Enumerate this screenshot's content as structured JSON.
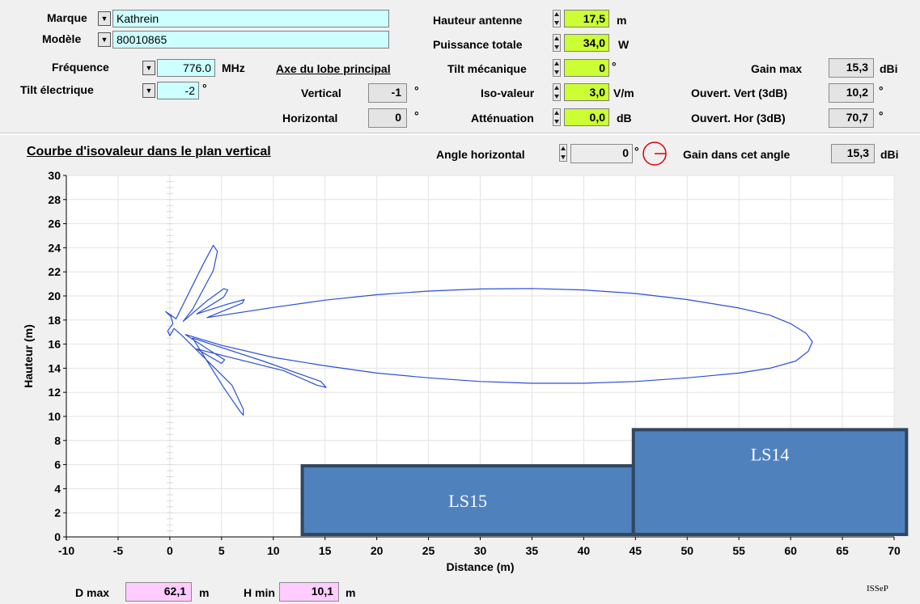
{
  "params": {
    "marque_label": "Marque",
    "marque_value": "Kathrein",
    "modele_label": "Modèle",
    "modele_value": "80010865",
    "frequence_label": "Fréquence",
    "frequence_value": "776.0",
    "frequence_unit": "MHz",
    "tilt_elec_label": "Tilt électrique",
    "tilt_elec_value": "-2",
    "tilt_elec_unit": "°",
    "axe_label": "Axe du lobe principal",
    "vertical_label": "Vertical",
    "vertical_value": "-1",
    "vertical_unit": "°",
    "horizontal_label": "Horizontal",
    "horizontal_value": "0",
    "horizontal_unit": "°",
    "hauteur_label": "Hauteur antenne",
    "hauteur_value": "17,5",
    "hauteur_unit": "m",
    "puissance_label": "Puissance totale",
    "puissance_value": "34,0",
    "puissance_unit": "W",
    "tilt_meca_label": "Tilt mécanique",
    "tilt_meca_value": "0",
    "tilt_meca_unit": "°",
    "iso_label": "Iso-valeur",
    "iso_value": "3,0",
    "iso_unit": "V/m",
    "att_label": "Atténuation",
    "att_value": "0,0",
    "att_unit": "dB",
    "gain_max_label": "Gain max",
    "gain_max_value": "15,3",
    "gain_max_unit": "dBi",
    "ouv_vert_label": "Ouvert. Vert (3dB)",
    "ouv_vert_value": "10,2",
    "ouv_vert_unit": "°",
    "ouv_hor_label": "Ouvert. Hor (3dB)",
    "ouv_hor_value": "70,7",
    "ouv_hor_unit": "°"
  },
  "plot_header": {
    "title": "Courbe d'isovaleur dans le plan vertical",
    "angle_label": "Angle horizontal",
    "angle_value": "0",
    "angle_unit": "°",
    "gain_angle_label": "Gain dans cet angle",
    "gain_angle_value": "15,3",
    "gain_angle_unit": "dBi"
  },
  "footer": {
    "dmax_label": "D max",
    "dmax_value": "62,1",
    "dmax_unit": "m",
    "hmin_label": "H min",
    "hmin_value": "10,1",
    "hmin_unit": "m",
    "brand": "ISSeP"
  },
  "colors": {
    "curve": "#2a4fd6",
    "building_fill": "#4f81bd",
    "building_stroke": "#2f4760"
  },
  "chart_data": {
    "type": "line",
    "xlabel": "Distance (m)",
    "ylabel": "Hauteur (m)",
    "xlim": [
      -10,
      70
    ],
    "ylim": [
      0,
      30
    ],
    "xticks": [
      -10,
      -5,
      0,
      5,
      10,
      15,
      20,
      25,
      30,
      35,
      40,
      45,
      50,
      55,
      60,
      65,
      70
    ],
    "yticks": [
      0,
      2,
      4,
      6,
      8,
      10,
      12,
      14,
      16,
      18,
      20,
      22,
      24,
      26,
      28,
      30
    ],
    "grid": true,
    "series": [
      {
        "points": [
          [
            0.4,
            17.3
          ],
          [
            0.0,
            16.7
          ],
          [
            -0.2,
            17.1
          ],
          [
            0.3,
            17.7
          ],
          [
            0.1,
            18.3
          ],
          [
            -0.4,
            18.7
          ],
          [
            0.6,
            18.1
          ],
          [
            3.2,
            22.6
          ],
          [
            4.2,
            24.2
          ],
          [
            4.6,
            23.7
          ],
          [
            4.2,
            22.1
          ],
          [
            2.2,
            18.9
          ],
          [
            1.3,
            17.9
          ],
          [
            3.6,
            19.6
          ],
          [
            5.2,
            20.6
          ],
          [
            5.6,
            20.5
          ],
          [
            5.2,
            19.9
          ],
          [
            2.6,
            18.5
          ],
          [
            5.5,
            19.3
          ],
          [
            7.2,
            19.7
          ],
          [
            7.0,
            19.4
          ],
          [
            3.6,
            18.2
          ],
          [
            10,
            19.05
          ],
          [
            15,
            19.65
          ],
          [
            20,
            20.1
          ],
          [
            25,
            20.4
          ],
          [
            30,
            20.58
          ],
          [
            35,
            20.62
          ],
          [
            40,
            20.5
          ],
          [
            45,
            20.2
          ],
          [
            50,
            19.7
          ],
          [
            55,
            19.0
          ],
          [
            58,
            18.4
          ],
          [
            60,
            17.7
          ],
          [
            61.5,
            16.9
          ],
          [
            62.1,
            16.2
          ],
          [
            61.7,
            15.4
          ],
          [
            60.5,
            14.6
          ],
          [
            58,
            14.0
          ],
          [
            55,
            13.6
          ],
          [
            50,
            13.2
          ],
          [
            45,
            12.9
          ],
          [
            40,
            12.75
          ],
          [
            35,
            12.75
          ],
          [
            30,
            12.9
          ],
          [
            25,
            13.2
          ],
          [
            20,
            13.6
          ],
          [
            15,
            14.2
          ],
          [
            10,
            14.9
          ],
          [
            5,
            15.9
          ],
          [
            1.5,
            16.8
          ],
          [
            4.0,
            15.4
          ],
          [
            5.3,
            14.7
          ],
          [
            5.0,
            14.4
          ],
          [
            2.6,
            15.6
          ],
          [
            11,
            13.8
          ],
          [
            14.2,
            12.6
          ],
          [
            15.1,
            12.4
          ],
          [
            14.6,
            12.9
          ],
          [
            9.0,
            14.6
          ],
          [
            2.2,
            16.5
          ],
          [
            5.2,
            12.4
          ],
          [
            6.8,
            10.4
          ],
          [
            7.1,
            10.1
          ],
          [
            7.1,
            10.6
          ],
          [
            6.0,
            12.6
          ],
          [
            1.2,
            16.7
          ],
          [
            0.4,
            17.3
          ]
        ]
      }
    ],
    "buildings": [
      {
        "label": "LS15",
        "x0": 12.8,
        "x1": 44.8,
        "y0": 0.2,
        "y1": 5.9
      },
      {
        "label": "LS14",
        "x0": 44.8,
        "x1": 71.2,
        "y0": 0.2,
        "y1": 8.9
      }
    ]
  }
}
